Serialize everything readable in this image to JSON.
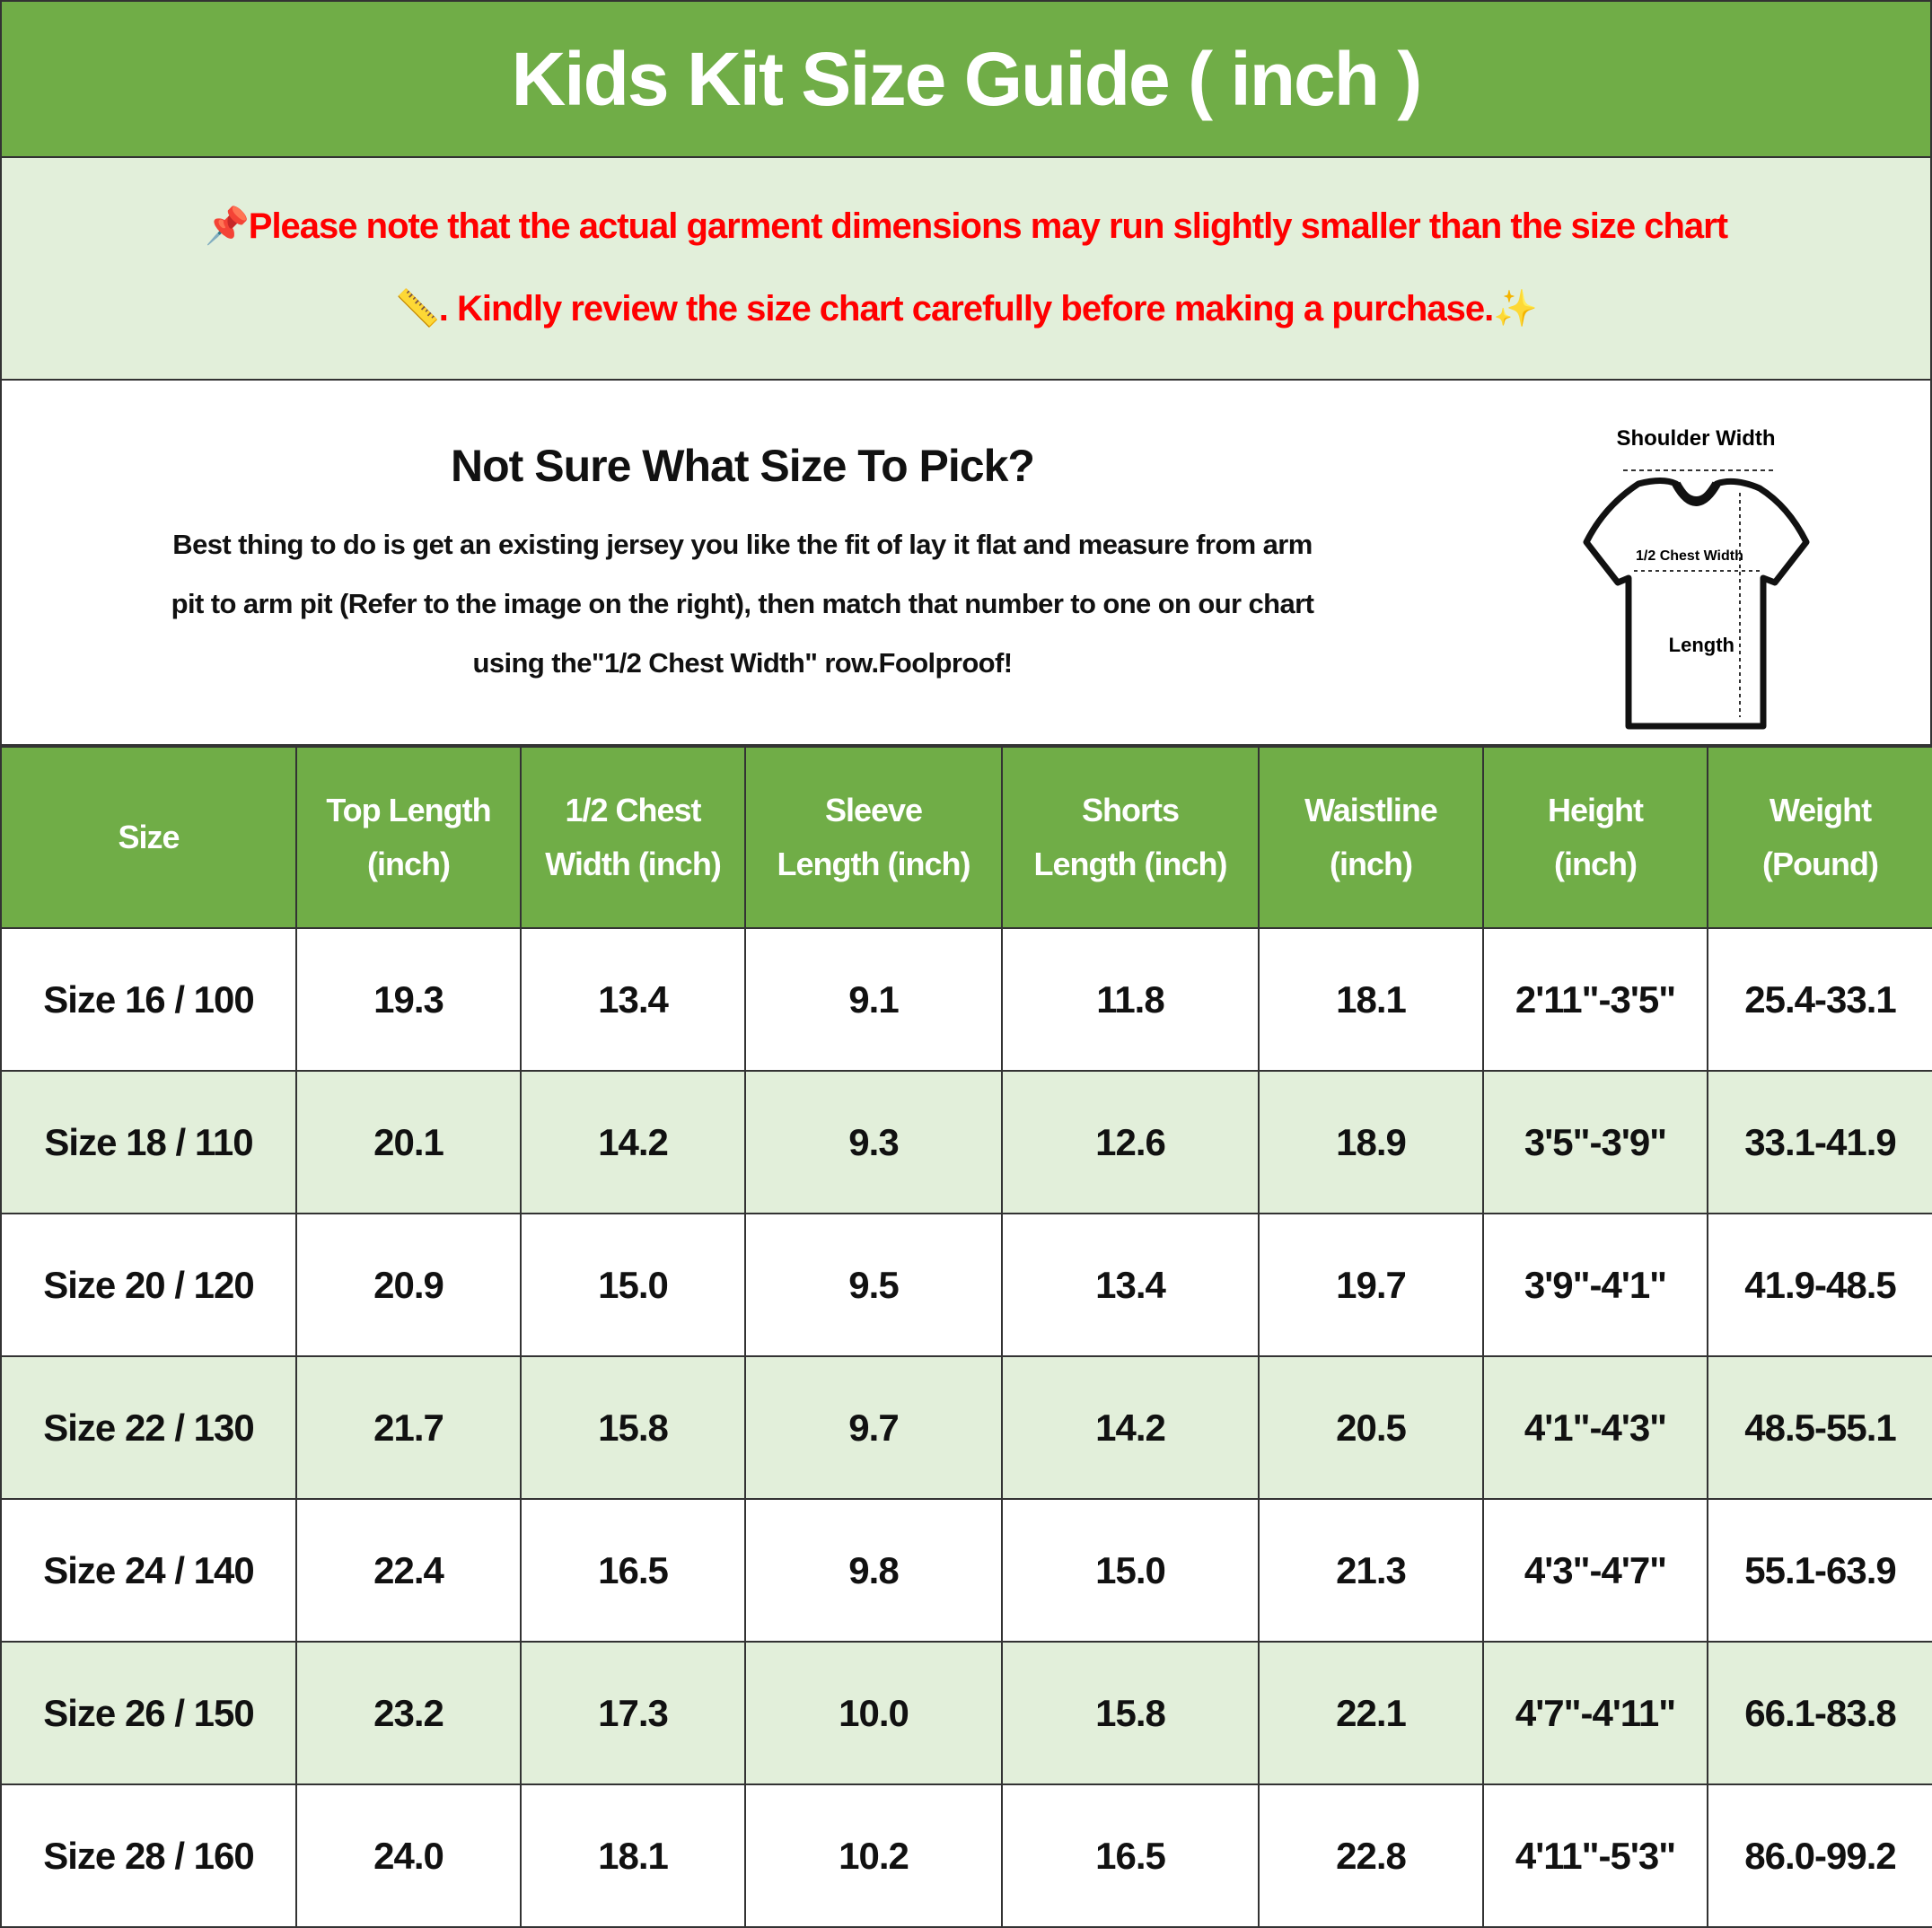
{
  "title": "Kids Kit Size Guide ( inch )",
  "note": {
    "line1": "Please note that the actual garment dimensions may run slightly smaller than the size chart",
    "line2": ". Kindly review the size chart carefully before making a purchase.",
    "icons": [
      "pushpin-icon",
      "ruler-icon",
      "sparkles-icon"
    ],
    "color": "#ff0000"
  },
  "info": {
    "heading": "Not Sure What Size To Pick?",
    "body_lines": [
      "Best thing to do is get an existing jersey you like the fit of lay it flat and measure from arm",
      "pit to arm pit (Refer to the image on the right), then match that number to one on our chart",
      "using the\"1/2 Chest Width\" row.Foolproof!"
    ],
    "diagram": {
      "shoulder": "Shoulder Width",
      "chest": "1/2 Chest Width",
      "length": "Length"
    }
  },
  "colors": {
    "header_green": "#70ad47",
    "light_green": "#e2efda"
  },
  "table": {
    "headers": [
      [
        "Size"
      ],
      [
        "Top Length",
        "(inch)"
      ],
      [
        "1/2 Chest",
        "Width (inch)"
      ],
      [
        "Sleeve",
        "Length (inch)"
      ],
      [
        "Shorts",
        "Length (inch)"
      ],
      [
        "Waistline",
        "(inch)"
      ],
      [
        "Height",
        "(inch)"
      ],
      [
        "Weight",
        "(Pound)"
      ]
    ],
    "rows": [
      [
        "Size 16 / 100",
        "19.3",
        "13.4",
        "9.1",
        "11.8",
        "18.1",
        "2'11\"-3'5\"",
        "25.4-33.1"
      ],
      [
        "Size 18 / 110",
        "20.1",
        "14.2",
        "9.3",
        "12.6",
        "18.9",
        "3'5\"-3'9\"",
        "33.1-41.9"
      ],
      [
        "Size 20 / 120",
        "20.9",
        "15.0",
        "9.5",
        "13.4",
        "19.7",
        "3'9\"-4'1\"",
        "41.9-48.5"
      ],
      [
        "Size 22 / 130",
        "21.7",
        "15.8",
        "9.7",
        "14.2",
        "20.5",
        "4'1\"-4'3\"",
        "48.5-55.1"
      ],
      [
        "Size 24 / 140",
        "22.4",
        "16.5",
        "9.8",
        "15.0",
        "21.3",
        "4'3\"-4'7\"",
        "55.1-63.9"
      ],
      [
        "Size 26 / 150",
        "23.2",
        "17.3",
        "10.0",
        "15.8",
        "22.1",
        "4'7\"-4'11\"",
        "66.1-83.8"
      ],
      [
        "Size 28 / 160",
        "24.0",
        "18.1",
        "10.2",
        "16.5",
        "22.8",
        "4'11\"-5'3\"",
        "86.0-99.2"
      ]
    ]
  }
}
